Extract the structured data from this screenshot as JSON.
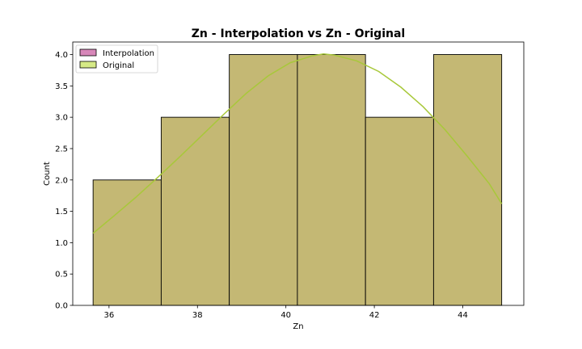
{
  "chart_data": {
    "type": "bar",
    "title": "Zn - Interpolation vs Zn - Original",
    "xlabel": "Zn",
    "ylabel": "Count",
    "xlim": [
      35.18,
      45.38
    ],
    "ylim": [
      0,
      4.2
    ],
    "xticks": [
      "36",
      "38",
      "40",
      "42",
      "44"
    ],
    "xtick_values": [
      36,
      38,
      40,
      42,
      44
    ],
    "yticks": [
      "0.0",
      "0.5",
      "1.0",
      "1.5",
      "2.0",
      "2.5",
      "3.0",
      "3.5",
      "4.0"
    ],
    "ytick_values": [
      0,
      0.5,
      1,
      1.5,
      2,
      2.5,
      3,
      3.5,
      4
    ],
    "bins": [
      {
        "x0": 35.64,
        "x1": 37.18,
        "count": 2
      },
      {
        "x0": 37.18,
        "x1": 38.72,
        "count": 3
      },
      {
        "x0": 38.72,
        "x1": 40.26,
        "count": 4
      },
      {
        "x0": 40.26,
        "x1": 41.8,
        "count": 4
      },
      {
        "x0": 41.8,
        "x1": 43.34,
        "count": 3
      },
      {
        "x0": 43.34,
        "x1": 44.88,
        "count": 4
      }
    ],
    "kde": {
      "x": [
        35.64,
        36.1,
        36.6,
        37.1,
        37.6,
        38.1,
        38.6,
        39.1,
        39.6,
        40.1,
        40.6,
        40.85,
        41.1,
        41.6,
        42.1,
        42.6,
        43.1,
        43.6,
        44.1,
        44.6,
        44.88
      ],
      "y": [
        1.15,
        1.42,
        1.72,
        2.04,
        2.37,
        2.71,
        3.05,
        3.38,
        3.66,
        3.87,
        3.98,
        4.01,
        3.99,
        3.9,
        3.73,
        3.48,
        3.17,
        2.8,
        2.38,
        1.94,
        1.62
      ]
    },
    "series": [
      {
        "name": "Interpolation",
        "color": "#d787b9"
      },
      {
        "name": "Original",
        "color": "#d6ea86"
      }
    ],
    "bar_fill": "#c4b874",
    "kde_color": "#a8c83a",
    "legend_position": "upper left",
    "grid": false
  }
}
